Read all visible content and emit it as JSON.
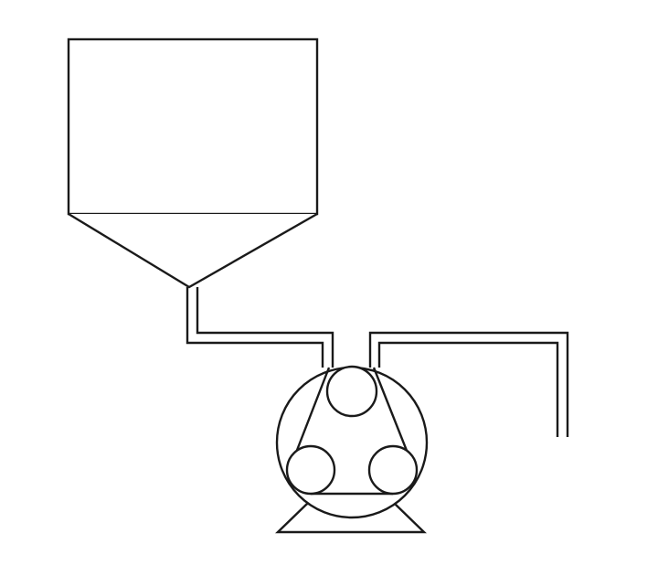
{
  "diagram": {
    "components": [
      {
        "name": "hopper-tank",
        "shape": "rectangle-with-conical-bottom"
      },
      {
        "name": "inlet-pipe",
        "shape": "double-line-pipe"
      },
      {
        "name": "peristaltic-pump",
        "shape": "circle-with-three-rollers"
      },
      {
        "name": "outlet-pipe",
        "shape": "double-line-pipe"
      },
      {
        "name": "pump-base",
        "shape": "trapezoid"
      }
    ],
    "colors": {
      "stroke": "#1a1a1a",
      "background": "#ffffff"
    }
  }
}
